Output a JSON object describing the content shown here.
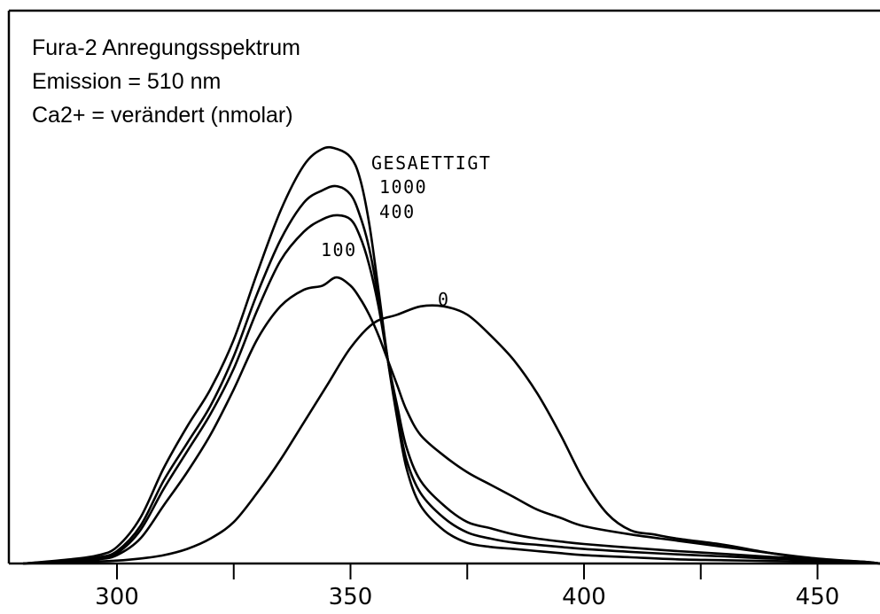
{
  "chart_data": {
    "type": "line",
    "title_lines": [
      "Fura-2 Anregungsspektrum",
      "Emission = 510 nm",
      "Ca2+ = verändert (nmolar)"
    ],
    "xlabel": "",
    "ylabel": "",
    "xlim": [
      280,
      465
    ],
    "ylim": [
      0,
      1.0
    ],
    "x_ticks": [
      300,
      325,
      350,
      375,
      400,
      425,
      450
    ],
    "x_tick_labels": [
      {
        "value": 300,
        "label": "300"
      },
      {
        "value": 350,
        "label": "350"
      },
      {
        "value": 400,
        "label": "400"
      },
      {
        "value": 450,
        "label": "450"
      }
    ],
    "grid": false,
    "legend": "none",
    "line_color": "#000000",
    "series": [
      {
        "name": "GESAETTIGT",
        "x": [
          280,
          290,
          296,
          300,
          305,
          310,
          315,
          320,
          325,
          330,
          335,
          340,
          344,
          347,
          350,
          352,
          354,
          356,
          358,
          360,
          362,
          365,
          370,
          375,
          380,
          385,
          390,
          395,
          400,
          410,
          420,
          430,
          440,
          450,
          460,
          465
        ],
        "y": [
          0.0,
          0.01,
          0.02,
          0.04,
          0.11,
          0.23,
          0.33,
          0.42,
          0.54,
          0.7,
          0.85,
          0.96,
          1.0,
          1.0,
          0.98,
          0.93,
          0.82,
          0.66,
          0.49,
          0.35,
          0.23,
          0.14,
          0.08,
          0.05,
          0.04,
          0.035,
          0.03,
          0.025,
          0.02,
          0.015,
          0.01,
          0.008,
          0.006,
          0.004,
          0.002,
          0.0
        ]
      },
      {
        "name": "1000",
        "x": [
          280,
          290,
          296,
          300,
          305,
          310,
          315,
          320,
          325,
          330,
          335,
          340,
          344,
          347,
          350,
          352,
          354,
          356,
          358,
          360,
          362,
          365,
          370,
          375,
          380,
          385,
          390,
          395,
          400,
          410,
          420,
          430,
          440,
          450,
          460,
          465
        ],
        "y": [
          0.0,
          0.008,
          0.015,
          0.03,
          0.09,
          0.2,
          0.29,
          0.38,
          0.5,
          0.65,
          0.78,
          0.87,
          0.9,
          0.91,
          0.89,
          0.84,
          0.76,
          0.64,
          0.49,
          0.36,
          0.25,
          0.17,
          0.11,
          0.075,
          0.06,
          0.05,
          0.045,
          0.04,
          0.035,
          0.028,
          0.022,
          0.017,
          0.012,
          0.008,
          0.003,
          0.0
        ]
      },
      {
        "name": "400",
        "x": [
          280,
          290,
          296,
          300,
          305,
          310,
          315,
          320,
          325,
          330,
          335,
          340,
          344,
          347,
          350,
          352,
          354,
          356,
          358,
          360,
          362,
          365,
          370,
          375,
          380,
          385,
          390,
          395,
          400,
          410,
          420,
          430,
          440,
          450,
          460,
          465
        ],
        "y": [
          0.0,
          0.007,
          0.013,
          0.025,
          0.08,
          0.18,
          0.27,
          0.36,
          0.47,
          0.61,
          0.73,
          0.8,
          0.83,
          0.84,
          0.83,
          0.79,
          0.72,
          0.62,
          0.49,
          0.38,
          0.28,
          0.2,
          0.14,
          0.1,
          0.085,
          0.07,
          0.06,
          0.053,
          0.047,
          0.038,
          0.03,
          0.023,
          0.016,
          0.01,
          0.004,
          0.0
        ]
      },
      {
        "name": "100",
        "x": [
          280,
          290,
          296,
          300,
          305,
          310,
          315,
          320,
          325,
          330,
          335,
          340,
          344,
          347,
          350,
          352,
          354,
          356,
          358,
          360,
          362,
          365,
          370,
          375,
          380,
          385,
          390,
          395,
          400,
          410,
          420,
          430,
          440,
          450,
          460,
          465
        ],
        "y": [
          0.0,
          0.005,
          0.01,
          0.02,
          0.06,
          0.14,
          0.22,
          0.31,
          0.42,
          0.54,
          0.62,
          0.66,
          0.67,
          0.69,
          0.67,
          0.64,
          0.6,
          0.55,
          0.49,
          0.43,
          0.37,
          0.31,
          0.26,
          0.22,
          0.19,
          0.16,
          0.13,
          0.11,
          0.09,
          0.07,
          0.055,
          0.04,
          0.025,
          0.012,
          0.004,
          0.0
        ]
      },
      {
        "name": "0",
        "x": [
          280,
          290,
          296,
          300,
          305,
          310,
          315,
          320,
          325,
          330,
          335,
          340,
          345,
          350,
          355,
          360,
          365,
          370,
          375,
          380,
          385,
          390,
          395,
          400,
          405,
          410,
          415,
          420,
          430,
          440,
          450,
          460,
          465
        ],
        "y": [
          0.0,
          0.003,
          0.005,
          0.007,
          0.012,
          0.02,
          0.035,
          0.06,
          0.1,
          0.17,
          0.25,
          0.34,
          0.43,
          0.52,
          0.58,
          0.6,
          0.62,
          0.62,
          0.6,
          0.55,
          0.49,
          0.41,
          0.31,
          0.2,
          0.12,
          0.08,
          0.07,
          0.06,
          0.045,
          0.025,
          0.01,
          0.003,
          0.0
        ]
      }
    ]
  }
}
